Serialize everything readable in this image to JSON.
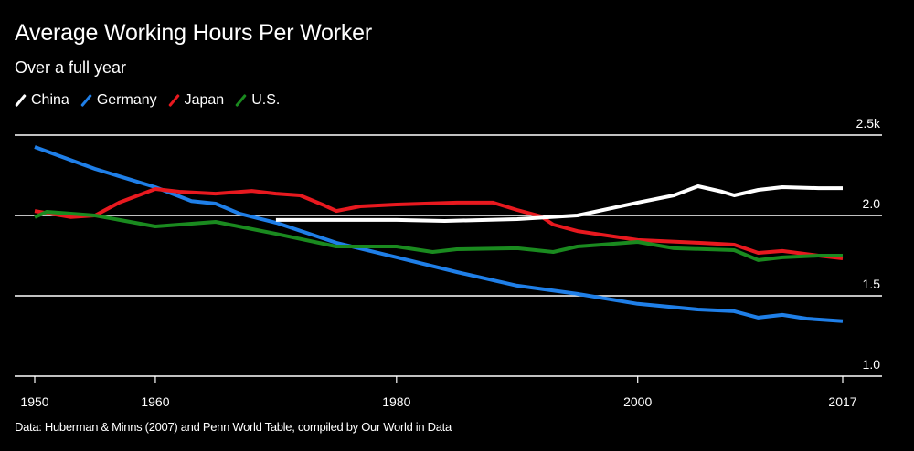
{
  "chart_data": {
    "type": "line",
    "title": "Average Working Hours Per Worker",
    "subtitle": "Over a full year",
    "xlabel": "",
    "ylabel": "",
    "source": "Data: Huberman & Minns (2007) and Penn World Table, compiled by Our World in Data",
    "legend_position": "top-left",
    "grid": true,
    "xlim": [
      1950,
      2017
    ],
    "ylim": [
      1000,
      2500
    ],
    "x_ticks": [
      1950,
      1960,
      1980,
      2000,
      2017
    ],
    "x_tick_labels": [
      "1950",
      "1960",
      "1980",
      "2000",
      "2017"
    ],
    "y_ticks": [
      1000,
      1500,
      2000,
      2500
    ],
    "y_tick_labels": [
      "1.0",
      "1.5",
      "2.0",
      "2.5k"
    ],
    "series": [
      {
        "name": "China",
        "color": "#ffffff",
        "x": [
          1970,
          1980,
          1984,
          1990,
          1995,
          2000,
          2003,
          2005,
          2007,
          2008,
          2010,
          2012,
          2015,
          2017
        ],
        "values": [
          1972,
          1972,
          1966,
          1977,
          2000,
          2080,
          2125,
          2182,
          2148,
          2125,
          2159,
          2176,
          2170,
          2170
        ]
      },
      {
        "name": "Germany",
        "color": "#1f7fe8",
        "x": [
          1950,
          1955,
          1960,
          1963,
          1965,
          1967,
          1970,
          1975,
          1980,
          1985,
          1990,
          1995,
          2000,
          2005,
          2008,
          2010,
          2012,
          2014,
          2017
        ],
        "values": [
          2426,
          2290,
          2176,
          2090,
          2074,
          2011,
          1955,
          1830,
          1740,
          1648,
          1563,
          1512,
          1450,
          1415,
          1404,
          1364,
          1381,
          1358,
          1342
        ]
      },
      {
        "name": "Japan",
        "color": "#e8191f",
        "x": [
          1950,
          1953,
          1955,
          1957,
          1960,
          1962,
          1965,
          1968,
          1970,
          1972,
          1974,
          1975,
          1977,
          1980,
          1985,
          1988,
          1990,
          1992,
          1993,
          1995,
          2000,
          2005,
          2008,
          2010,
          2012,
          2015,
          2017
        ],
        "values": [
          2028,
          1990,
          2000,
          2080,
          2165,
          2148,
          2136,
          2153,
          2136,
          2125,
          2063,
          2028,
          2057,
          2068,
          2080,
          2080,
          2034,
          1994,
          1943,
          1903,
          1847,
          1830,
          1818,
          1767,
          1779,
          1750,
          1733
        ]
      },
      {
        "name": "U.S.",
        "color": "#1a8a1f",
        "x": [
          1950,
          1951,
          1955,
          1960,
          1965,
          1970,
          1975,
          1980,
          1983,
          1985,
          1990,
          1993,
          1995,
          2000,
          2003,
          2008,
          2010,
          2012,
          2015,
          2017
        ],
        "values": [
          1990,
          2023,
          2000,
          1932,
          1960,
          1886,
          1807,
          1807,
          1773,
          1790,
          1796,
          1773,
          1807,
          1835,
          1796,
          1784,
          1722,
          1739,
          1750,
          1750
        ]
      }
    ]
  }
}
